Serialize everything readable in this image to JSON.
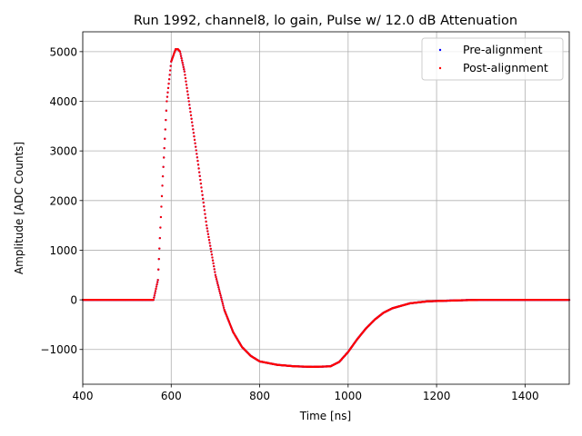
{
  "chart_data": {
    "type": "scatter",
    "title": "Run 1992, channel8, lo gain, Pulse w/ 12.0 dB Attenuation",
    "xlabel": "Time [ns]",
    "ylabel": "Amplitude [ADC Counts]",
    "xlim": [
      400,
      1500
    ],
    "ylim": [
      -1700,
      5400
    ],
    "x_ticks": [
      400,
      600,
      800,
      1000,
      1200,
      1400
    ],
    "y_ticks": [
      -1000,
      0,
      1000,
      2000,
      3000,
      4000,
      5000
    ],
    "grid": true,
    "legend_position": "top-right",
    "series": [
      {
        "name": "Pre-alignment",
        "color": "#0000ff",
        "marker": "dot",
        "x": [
          400,
          560,
          570,
          580,
          590,
          600,
          610,
          615,
          620,
          630,
          640,
          660,
          680,
          700,
          720,
          740,
          760,
          780,
          800,
          840,
          880,
          920,
          960,
          980,
          1000,
          1020,
          1040,
          1060,
          1080,
          1100,
          1140,
          1180,
          1250,
          1300,
          1400,
          1500
        ],
        "values": [
          0,
          0,
          400,
          2300,
          4000,
          4800,
          5050,
          5050,
          5000,
          4600,
          4000,
          2800,
          1500,
          500,
          -200,
          -650,
          -950,
          -1130,
          -1240,
          -1310,
          -1340,
          -1350,
          -1340,
          -1250,
          -1050,
          -800,
          -580,
          -400,
          -260,
          -170,
          -70,
          -30,
          -10,
          0,
          0,
          0
        ]
      },
      {
        "name": "Post-alignment",
        "color": "#ff0000",
        "marker": "dot",
        "x": [
          400,
          560,
          570,
          580,
          590,
          600,
          610,
          615,
          620,
          630,
          640,
          660,
          680,
          700,
          720,
          740,
          760,
          780,
          800,
          840,
          880,
          920,
          960,
          980,
          1000,
          1020,
          1040,
          1060,
          1080,
          1100,
          1140,
          1180,
          1250,
          1300,
          1400,
          1500
        ],
        "values": [
          0,
          0,
          400,
          2300,
          4000,
          4800,
          5050,
          5050,
          5000,
          4600,
          4000,
          2800,
          1500,
          500,
          -200,
          -650,
          -950,
          -1130,
          -1240,
          -1310,
          -1340,
          -1350,
          -1340,
          -1250,
          -1050,
          -800,
          -580,
          -400,
          -260,
          -170,
          -70,
          -30,
          -10,
          0,
          0,
          0
        ]
      }
    ]
  }
}
